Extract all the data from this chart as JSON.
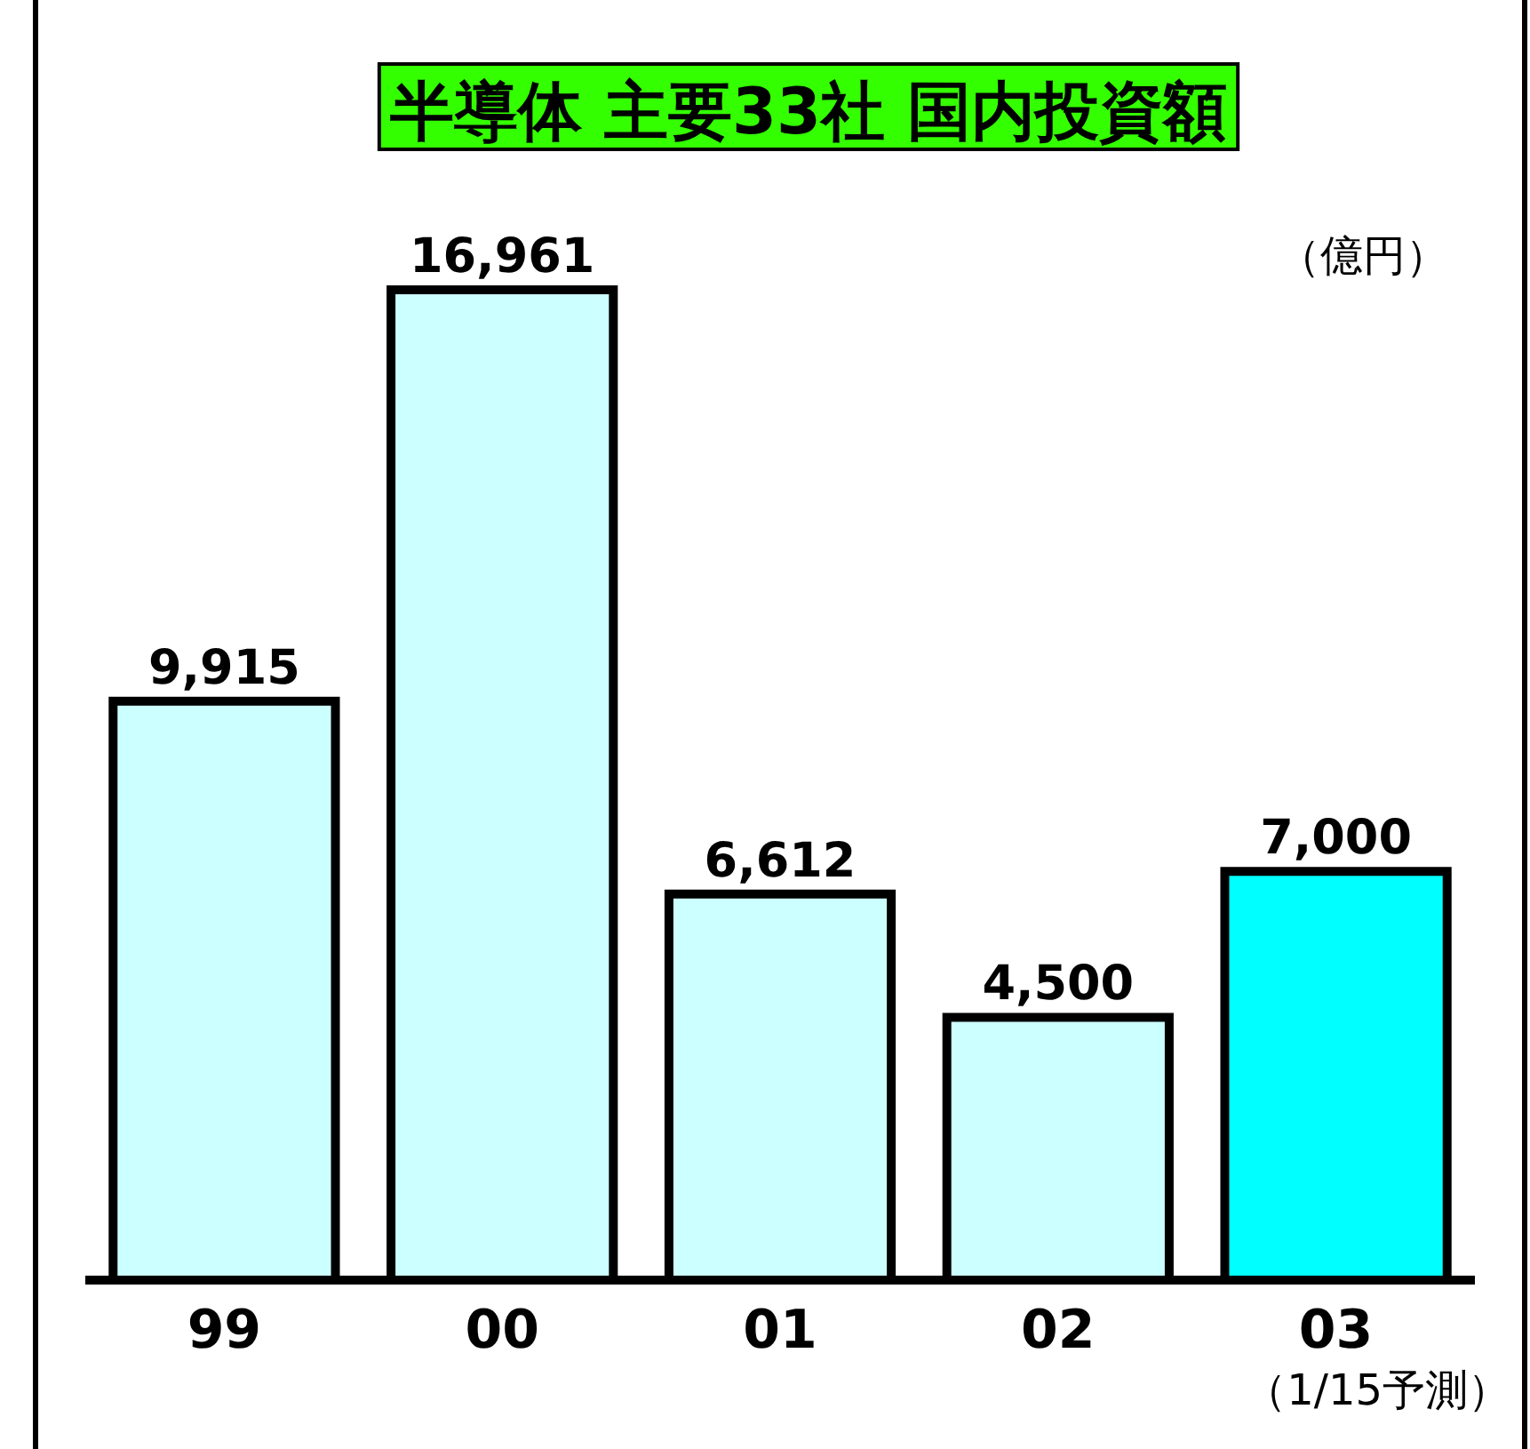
{
  "chart_data": {
    "type": "bar",
    "title": "半導体 主要33社 国内投資額",
    "categories": [
      "99",
      "00",
      "01",
      "02",
      "03"
    ],
    "values": [
      9915,
      16961,
      6612,
      4500,
      7000
    ],
    "colors": [
      "#ccffff",
      "#ccffff",
      "#ccffff",
      "#ccffff",
      "#00ffff"
    ],
    "value_labels": [
      "9,915",
      "16,961",
      "6,612",
      "4,500",
      "7,000"
    ],
    "annotations": [
      "（億円）",
      "（1/15予測）"
    ]
  }
}
